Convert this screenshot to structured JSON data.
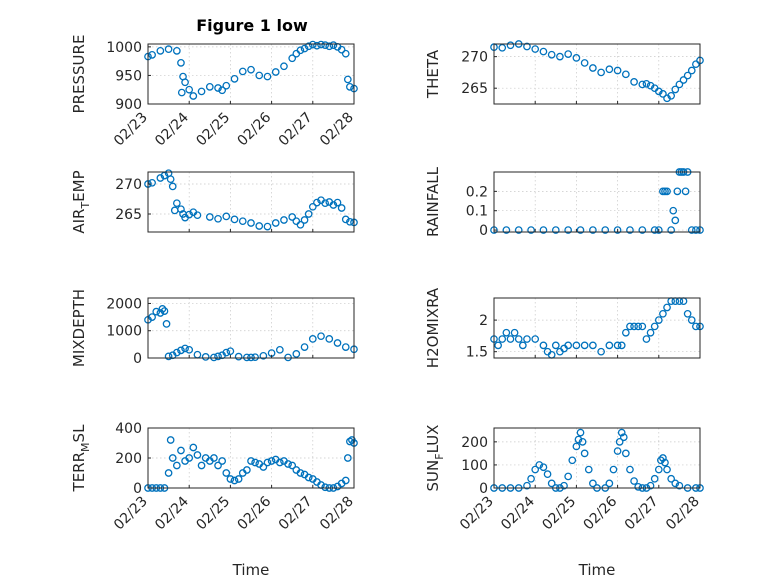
{
  "figure": {
    "title": "Figure 1 low",
    "marker_color": "#0072BD"
  },
  "chart_data": [
    {
      "type": "scatter",
      "name": "pressure",
      "ylabel": "PRESSURE",
      "ylabel_base": "PRESSURE",
      "ylabel_sub": "",
      "ylabel_tail": "",
      "xlabel": "",
      "ylim": [
        900,
        1005
      ],
      "yticks": [
        900,
        950,
        1000
      ],
      "ytick_labels": [
        "900",
        "950",
        "1000"
      ],
      "x": [
        0.0,
        0.1,
        0.3,
        0.5,
        0.7,
        0.8,
        0.82,
        0.85,
        0.9,
        1.0,
        1.1,
        1.3,
        1.5,
        1.7,
        1.8,
        1.9,
        2.1,
        2.3,
        2.5,
        2.7,
        2.9,
        3.1,
        3.3,
        3.5,
        3.6,
        3.7,
        3.8,
        3.9,
        4.0,
        4.1,
        4.2,
        4.3,
        4.4,
        4.5,
        4.6,
        4.7,
        4.8,
        4.85,
        4.9,
        5.0
      ],
      "y": [
        983,
        986,
        993,
        996,
        993,
        972,
        920,
        948,
        938,
        925,
        914,
        922,
        930,
        928,
        924,
        932,
        944,
        957,
        960,
        950,
        948,
        956,
        966,
        980,
        988,
        994,
        997,
        1001,
        1004,
        1002,
        1004,
        1003,
        1001,
        1003,
        1000,
        995,
        988,
        943,
        930,
        927
      ],
      "xticks": [
        0,
        1,
        2,
        3,
        4,
        5
      ],
      "xtick_labels": [
        "02/23",
        "02/24",
        "02/25",
        "02/26",
        "02/27",
        "02/28"
      ]
    },
    {
      "type": "scatter",
      "name": "theta",
      "ylabel": "THETA",
      "ylabel_base": "THETA",
      "ylabel_sub": "",
      "ylabel_tail": "",
      "xlabel": "",
      "ylim": [
        262.5,
        272
      ],
      "yticks": [
        265,
        270
      ],
      "ytick_labels": [
        "265",
        "270"
      ],
      "x": [
        0.0,
        0.2,
        0.4,
        0.6,
        0.8,
        1.0,
        1.2,
        1.4,
        1.6,
        1.8,
        2.0,
        2.2,
        2.4,
        2.6,
        2.8,
        3.0,
        3.2,
        3.4,
        3.6,
        3.7,
        3.8,
        3.9,
        4.0,
        4.1,
        4.2,
        4.3,
        4.4,
        4.5,
        4.6,
        4.7,
        4.8,
        4.9,
        5.0
      ],
      "y": [
        271.5,
        271.4,
        271.8,
        272.0,
        271.6,
        271.2,
        270.8,
        270.3,
        270.0,
        270.4,
        269.8,
        269.0,
        268.2,
        267.5,
        268.0,
        267.8,
        267.2,
        266.0,
        265.6,
        265.7,
        265.4,
        265.0,
        264.5,
        264.1,
        263.4,
        263.8,
        264.8,
        265.6,
        266.3,
        267.0,
        267.8,
        268.8,
        269.4
      ]
    },
    {
      "type": "scatter",
      "name": "air-temp",
      "ylabel": "AIR_TEMP",
      "ylabel_base": "AIR",
      "ylabel_sub": "T",
      "ylabel_tail": "EMP",
      "xlabel": "",
      "ylim": [
        262,
        272
      ],
      "yticks": [
        265,
        270
      ],
      "ytick_labels": [
        "265",
        "270"
      ],
      "x": [
        0.0,
        0.1,
        0.3,
        0.4,
        0.5,
        0.55,
        0.6,
        0.65,
        0.7,
        0.8,
        0.85,
        0.9,
        1.0,
        1.1,
        1.2,
        1.5,
        1.7,
        1.9,
        2.1,
        2.3,
        2.5,
        2.7,
        2.9,
        3.1,
        3.3,
        3.5,
        3.6,
        3.7,
        3.8,
        3.9,
        4.0,
        4.1,
        4.2,
        4.3,
        4.4,
        4.5,
        4.6,
        4.7,
        4.8,
        4.9,
        5.0
      ],
      "y": [
        270.0,
        270.2,
        271.0,
        271.4,
        271.8,
        270.8,
        269.6,
        265.6,
        266.8,
        265.8,
        265.0,
        264.4,
        264.9,
        265.3,
        264.8,
        264.5,
        264.2,
        264.6,
        264.1,
        263.8,
        263.5,
        263.0,
        262.9,
        263.5,
        264.0,
        264.5,
        263.8,
        263.2,
        264.0,
        265.0,
        266.2,
        266.9,
        267.3,
        266.8,
        267.0,
        266.5,
        266.9,
        266.0,
        264.1,
        263.7,
        263.6
      ]
    },
    {
      "type": "scatter",
      "name": "rainfall",
      "ylabel": "RAINFALL",
      "ylabel_base": "RAINFALL",
      "ylabel_sub": "",
      "ylabel_tail": "",
      "xlabel": "",
      "ylim": [
        -0.01,
        0.3
      ],
      "yticks": [
        0,
        0.1,
        0.2
      ],
      "ytick_labels": [
        "0",
        "0.1",
        "0.2"
      ],
      "x": [
        0.0,
        0.3,
        0.6,
        0.9,
        1.2,
        1.5,
        1.8,
        2.1,
        2.4,
        2.7,
        3.0,
        3.3,
        3.6,
        3.9,
        4.0,
        4.1,
        4.15,
        4.2,
        4.3,
        4.35,
        4.4,
        4.45,
        4.5,
        4.55,
        4.6,
        4.65,
        4.7,
        4.8,
        4.9,
        5.0
      ],
      "y": [
        0,
        0,
        0,
        0,
        0,
        0,
        0,
        0,
        0,
        0,
        0,
        0,
        0,
        0,
        0,
        0.2,
        0.2,
        0.2,
        0,
        0.1,
        0.05,
        0.2,
        0.3,
        0.3,
        0.3,
        0.2,
        0.3,
        0,
        0,
        0
      ]
    },
    {
      "type": "scatter",
      "name": "mixdepth",
      "ylabel": "MIXDEPTH",
      "ylabel_base": "MIXDEPTH",
      "ylabel_sub": "",
      "ylabel_tail": "",
      "xlabel": "",
      "ylim": [
        0,
        2200
      ],
      "yticks": [
        0,
        1000,
        2000
      ],
      "ytick_labels": [
        "0",
        "1000",
        "2000"
      ],
      "x": [
        0.0,
        0.1,
        0.2,
        0.3,
        0.35,
        0.4,
        0.45,
        0.5,
        0.6,
        0.7,
        0.8,
        0.9,
        1.0,
        1.2,
        1.4,
        1.6,
        1.7,
        1.8,
        1.9,
        2.0,
        2.2,
        2.4,
        2.5,
        2.6,
        2.8,
        3.0,
        3.2,
        3.4,
        3.6,
        3.8,
        4.0,
        4.2,
        4.4,
        4.6,
        4.8,
        5.0
      ],
      "y": [
        1400,
        1500,
        1700,
        1650,
        1800,
        1720,
        1250,
        60,
        100,
        200,
        280,
        350,
        300,
        120,
        40,
        20,
        60,
        100,
        200,
        250,
        50,
        20,
        20,
        30,
        80,
        180,
        300,
        20,
        150,
        400,
        700,
        800,
        700,
        550,
        400,
        320
      ]
    },
    {
      "type": "scatter",
      "name": "h2omixra",
      "ylabel": "H2OMIXRA",
      "ylabel_base": "H2OMIXRA",
      "ylabel_sub": "",
      "ylabel_tail": "",
      "xlabel": "",
      "ylim": [
        1.4,
        2.35
      ],
      "yticks": [
        1.5,
        2
      ],
      "ytick_labels": [
        "1.5",
        "2"
      ],
      "x": [
        0.0,
        0.1,
        0.2,
        0.3,
        0.4,
        0.5,
        0.6,
        0.7,
        0.8,
        1.0,
        1.2,
        1.3,
        1.4,
        1.5,
        1.6,
        1.7,
        1.8,
        2.0,
        2.2,
        2.4,
        2.6,
        2.8,
        3.0,
        3.1,
        3.2,
        3.3,
        3.4,
        3.5,
        3.6,
        3.7,
        3.8,
        3.9,
        4.0,
        4.1,
        4.2,
        4.3,
        4.4,
        4.5,
        4.6,
        4.7,
        4.8,
        4.9,
        5.0
      ],
      "y": [
        1.7,
        1.6,
        1.7,
        1.8,
        1.7,
        1.8,
        1.7,
        1.6,
        1.7,
        1.7,
        1.6,
        1.5,
        1.45,
        1.6,
        1.5,
        1.55,
        1.6,
        1.6,
        1.6,
        1.6,
        1.5,
        1.6,
        1.6,
        1.6,
        1.8,
        1.9,
        1.9,
        1.9,
        1.9,
        1.7,
        1.8,
        1.9,
        2.0,
        2.1,
        2.2,
        2.3,
        2.3,
        2.3,
        2.3,
        2.1,
        2.0,
        1.9,
        1.9
      ]
    },
    {
      "type": "scatter",
      "name": "terr-msl",
      "ylabel": "TERR_MSL",
      "ylabel_base": "TERR",
      "ylabel_sub": "M",
      "ylabel_tail": "SL",
      "xlabel": "Time",
      "ylim": [
        0,
        400
      ],
      "yticks": [
        0,
        200,
        400
      ],
      "ytick_labels": [
        "0",
        "200",
        "400"
      ],
      "x": [
        0.0,
        0.1,
        0.2,
        0.3,
        0.4,
        0.5,
        0.55,
        0.6,
        0.7,
        0.8,
        0.9,
        1.0,
        1.1,
        1.2,
        1.3,
        1.4,
        1.5,
        1.6,
        1.7,
        1.8,
        1.9,
        2.0,
        2.1,
        2.2,
        2.3,
        2.4,
        2.5,
        2.6,
        2.7,
        2.8,
        2.9,
        3.0,
        3.1,
        3.2,
        3.3,
        3.4,
        3.5,
        3.6,
        3.7,
        3.8,
        3.9,
        4.0,
        4.1,
        4.2,
        4.3,
        4.4,
        4.5,
        4.6,
        4.7,
        4.8,
        4.85,
        4.9,
        4.95,
        5.0
      ],
      "y": [
        0,
        0,
        0,
        0,
        0,
        100,
        320,
        200,
        150,
        250,
        180,
        200,
        270,
        220,
        150,
        200,
        180,
        200,
        150,
        180,
        100,
        60,
        50,
        60,
        100,
        120,
        180,
        170,
        160,
        140,
        170,
        180,
        190,
        170,
        180,
        160,
        150,
        120,
        100,
        90,
        70,
        60,
        40,
        20,
        5,
        0,
        0,
        10,
        30,
        50,
        200,
        310,
        320,
        300
      ],
      "xticks": [
        0,
        1,
        2,
        3,
        4,
        5
      ],
      "xtick_labels": [
        "02/23",
        "02/24",
        "02/25",
        "02/26",
        "02/27",
        "02/28"
      ]
    },
    {
      "type": "scatter",
      "name": "sun-flux",
      "ylabel": "SUN_FLUX",
      "ylabel_base": "SUN",
      "ylabel_sub": "F",
      "ylabel_tail": "LUX",
      "xlabel": "Time",
      "ylim": [
        0,
        260
      ],
      "yticks": [
        0,
        100,
        200
      ],
      "ytick_labels": [
        "0",
        "100",
        "200"
      ],
      "x": [
        0.0,
        0.2,
        0.4,
        0.6,
        0.8,
        0.9,
        1.0,
        1.1,
        1.2,
        1.3,
        1.4,
        1.5,
        1.6,
        1.7,
        1.8,
        1.9,
        2.0,
        2.05,
        2.1,
        2.15,
        2.2,
        2.3,
        2.4,
        2.5,
        2.7,
        2.8,
        2.9,
        3.0,
        3.05,
        3.1,
        3.15,
        3.2,
        3.3,
        3.4,
        3.5,
        3.6,
        3.7,
        3.8,
        3.9,
        4.0,
        4.05,
        4.1,
        4.15,
        4.2,
        4.3,
        4.4,
        4.5,
        4.7,
        4.9,
        5.0
      ],
      "y": [
        0,
        0,
        0,
        0,
        10,
        40,
        80,
        100,
        90,
        60,
        20,
        0,
        0,
        10,
        50,
        120,
        180,
        210,
        240,
        200,
        150,
        80,
        20,
        0,
        0,
        20,
        80,
        160,
        200,
        240,
        220,
        150,
        80,
        30,
        5,
        0,
        0,
        10,
        40,
        80,
        120,
        130,
        110,
        80,
        40,
        20,
        10,
        0,
        0,
        0
      ],
      "xticks": [
        0,
        1,
        2,
        3,
        4,
        5
      ],
      "xtick_labels": [
        "02/23",
        "02/24",
        "02/25",
        "02/26",
        "02/27",
        "02/28"
      ]
    }
  ]
}
